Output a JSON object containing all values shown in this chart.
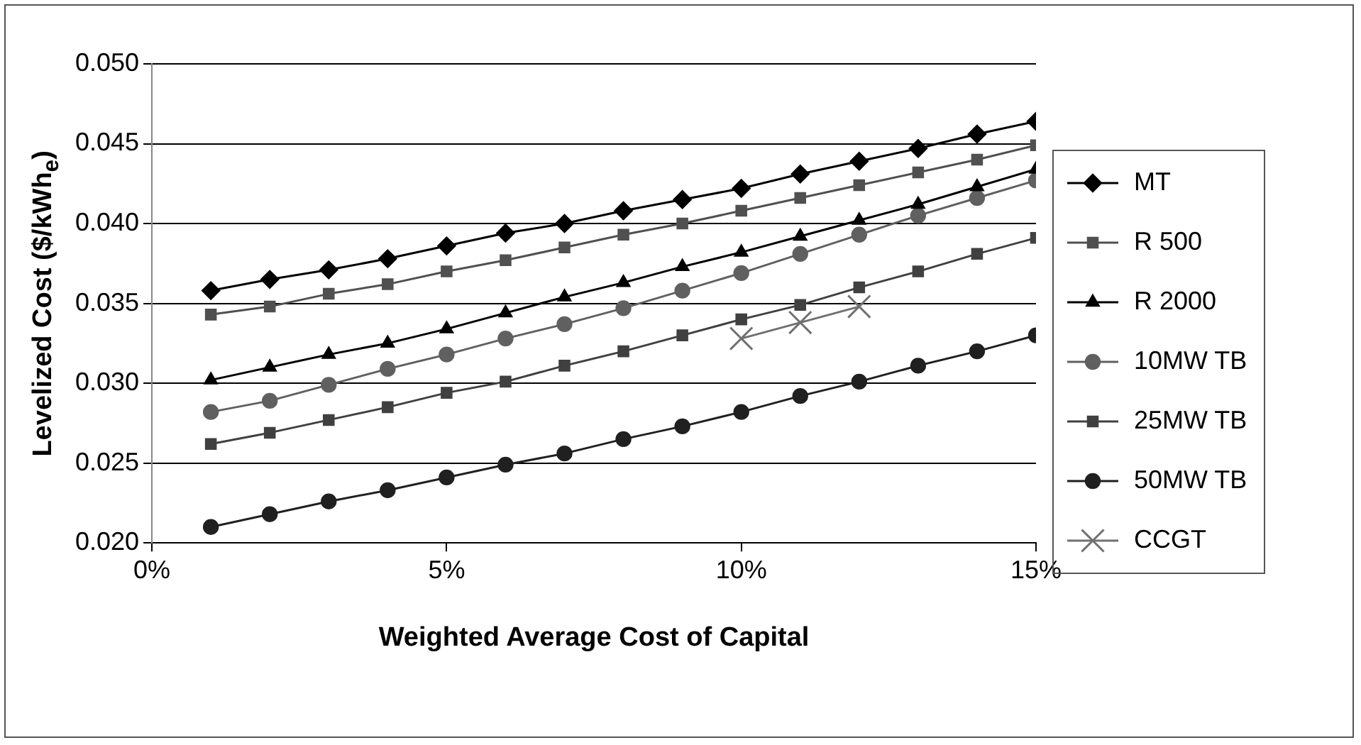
{
  "chart_data": {
    "type": "line",
    "xlabel": "Weighted Average Cost of Capital",
    "ylabel": "Levelized Cost ($/kWh$_{e}$)",
    "x": [
      1,
      2,
      3,
      4,
      5,
      6,
      7,
      8,
      9,
      10,
      11,
      12,
      13,
      14,
      15
    ],
    "xlim": [
      0,
      15
    ],
    "xticks": [
      {
        "value": 0,
        "label": "0%"
      },
      {
        "value": 5,
        "label": "5%"
      },
      {
        "value": 10,
        "label": "10%"
      },
      {
        "value": 15,
        "label": "15%"
      }
    ],
    "ylim": [
      0.02,
      0.05
    ],
    "yticks": [
      {
        "value": 0.02,
        "label": "0.020"
      },
      {
        "value": 0.025,
        "label": "0.025"
      },
      {
        "value": 0.03,
        "label": "0.030"
      },
      {
        "value": 0.035,
        "label": "0.035"
      },
      {
        "value": 0.04,
        "label": "0.040"
      },
      {
        "value": 0.045,
        "label": "0.045"
      },
      {
        "value": 0.05,
        "label": "0.050"
      }
    ],
    "grid": "y",
    "legend": "right",
    "line_style": "solid",
    "series": [
      {
        "name": "MT",
        "color": "#000000",
        "marker": "diamond",
        "values": [
          0.0358,
          0.0365,
          0.0371,
          0.0378,
          0.0386,
          0.0394,
          0.04,
          0.0408,
          0.0415,
          0.0422,
          0.0431,
          0.0439,
          0.0447,
          0.0456,
          0.0464
        ]
      },
      {
        "name": "R 500",
        "color": "#505050",
        "marker": "square",
        "values": [
          0.0343,
          0.0348,
          0.0356,
          0.0362,
          0.037,
          0.0377,
          0.0385,
          0.0393,
          0.04,
          0.0408,
          0.0416,
          0.0424,
          0.0432,
          0.044,
          0.0449
        ]
      },
      {
        "name": "R 2000",
        "color": "#000000",
        "marker": "triangle",
        "values": [
          0.0302,
          0.031,
          0.0318,
          0.0325,
          0.0334,
          0.0344,
          0.0354,
          0.0363,
          0.0373,
          0.0382,
          0.0392,
          0.0402,
          0.0412,
          0.0423,
          0.0434
        ]
      },
      {
        "name": "10MW TB",
        "color": "#606060",
        "marker": "circle",
        "values": [
          0.0282,
          0.0289,
          0.0299,
          0.0309,
          0.0318,
          0.0328,
          0.0337,
          0.0347,
          0.0358,
          0.0369,
          0.0381,
          0.0393,
          0.0405,
          0.0416,
          0.0427
        ]
      },
      {
        "name": "25MW TB",
        "color": "#404040",
        "marker": "square",
        "values": [
          0.0262,
          0.0269,
          0.0277,
          0.0285,
          0.0294,
          0.0301,
          0.0311,
          0.032,
          0.033,
          0.034,
          0.0349,
          0.036,
          0.037,
          0.0381,
          0.0391
        ]
      },
      {
        "name": "50MW TB",
        "color": "#202020",
        "marker": "circle",
        "values": [
          0.021,
          0.0218,
          0.0226,
          0.0233,
          0.0241,
          0.0249,
          0.0256,
          0.0265,
          0.0273,
          0.0282,
          0.0292,
          0.0301,
          0.0311,
          0.032,
          0.033
        ]
      },
      {
        "name": "CCGT",
        "color": "#707070",
        "marker": "cross",
        "x": [
          10,
          11,
          12
        ],
        "values": [
          0.0328,
          0.0338,
          0.0348
        ]
      }
    ]
  }
}
